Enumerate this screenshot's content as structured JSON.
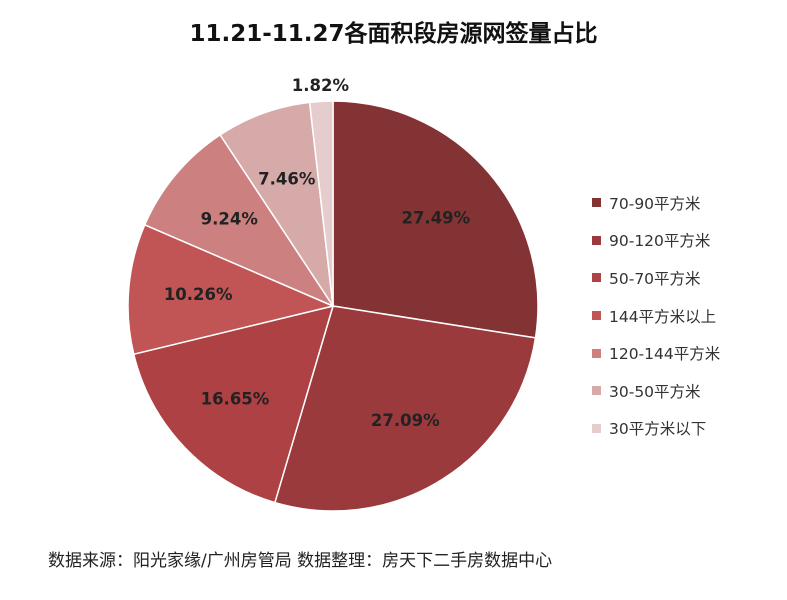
{
  "title": "11.21-11.27各面积段房源网签量占比",
  "source": "数据来源：阳光家缘/广州房管局 数据整理：房天下二手房数据中心",
  "chart_data": {
    "type": "pie",
    "title": "11.21-11.27各面积段房源网签量占比",
    "legend_position": "right",
    "unit": "%",
    "slices": [
      {
        "label": "70-90平方米",
        "value": 27.49,
        "display": "27.49%",
        "color": "#843334"
      },
      {
        "label": "90-120平方米",
        "value": 27.09,
        "display": "27.09%",
        "color": "#9b3a3c"
      },
      {
        "label": "50-70平方米",
        "value": 16.65,
        "display": "16.65%",
        "color": "#ad4144"
      },
      {
        "label": "144平方米以上",
        "value": 10.26,
        "display": "10.26%",
        "color": "#c15555"
      },
      {
        "label": "120-144平方米",
        "value": 9.24,
        "display": "9.24%",
        "color": "#cc8080"
      },
      {
        "label": "30-50平方米",
        "value": 7.46,
        "display": "7.46%",
        "color": "#d7aaaa"
      },
      {
        "label": "30平方米以下",
        "value": 1.82,
        "display": "1.82%",
        "color": "#e6cdcd"
      }
    ]
  }
}
